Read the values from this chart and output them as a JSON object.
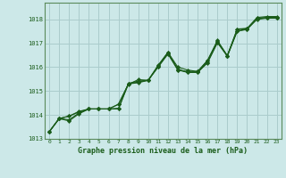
{
  "background_color": "#cce8e8",
  "grid_color": "#aacccc",
  "line_color": "#1a5c1a",
  "spine_color": "#5a8a5a",
  "title": "Graphe pression niveau de la mer (hPa)",
  "xlim": [
    -0.5,
    23.5
  ],
  "ylim": [
    1013,
    1018.7
  ],
  "yticks": [
    1013,
    1014,
    1015,
    1016,
    1017,
    1018
  ],
  "xticks": [
    0,
    1,
    2,
    3,
    4,
    5,
    6,
    7,
    8,
    9,
    10,
    11,
    12,
    13,
    14,
    15,
    16,
    17,
    18,
    19,
    20,
    21,
    22,
    23
  ],
  "series": [
    [
      1013.3,
      1013.85,
      1013.75,
      1014.05,
      1014.25,
      1014.25,
      1014.25,
      1014.25,
      1015.3,
      1015.35,
      1015.45,
      1016.05,
      1016.62,
      1016.0,
      1015.88,
      1015.82,
      1016.28,
      1017.12,
      1016.48,
      1017.6,
      1017.62,
      1018.08,
      1018.12,
      1018.12
    ],
    [
      1013.3,
      1013.85,
      1013.95,
      1014.15,
      1014.25,
      1014.25,
      1014.25,
      1014.45,
      1015.3,
      1015.38,
      1015.45,
      1016.0,
      1016.55,
      1015.88,
      1015.78,
      1015.78,
      1016.18,
      1017.02,
      1016.48,
      1017.5,
      1017.58,
      1018.02,
      1018.08,
      1018.08
    ],
    [
      1013.3,
      1013.85,
      1013.95,
      1014.12,
      1014.25,
      1014.25,
      1014.25,
      1014.45,
      1015.28,
      1015.48,
      1015.45,
      1016.08,
      1016.62,
      1015.88,
      1015.82,
      1015.82,
      1016.28,
      1017.08,
      1016.48,
      1017.58,
      1017.62,
      1018.05,
      1018.08,
      1018.08
    ],
    [
      1013.3,
      1013.85,
      1013.8,
      1014.08,
      1014.25,
      1014.25,
      1014.25,
      1014.28,
      1015.32,
      1015.42,
      1015.45,
      1016.02,
      1016.58,
      1015.92,
      1015.78,
      1015.78,
      1016.22,
      1017.05,
      1016.45,
      1017.52,
      1017.6,
      1018.0,
      1018.05,
      1018.05
    ]
  ]
}
